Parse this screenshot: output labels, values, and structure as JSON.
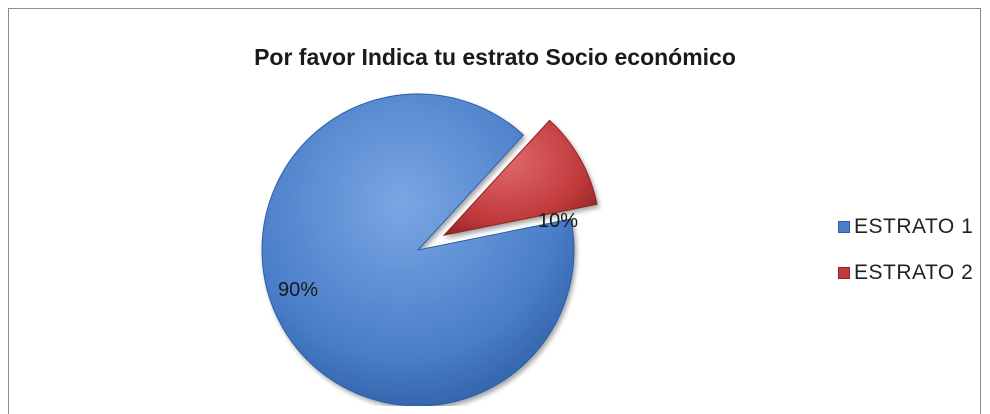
{
  "chart_data": {
    "type": "pie",
    "title": "Por favor Indica tu estrato Socio económico",
    "categories": [
      "ESTRATO 1",
      "ESTRATO 2"
    ],
    "values": [
      90,
      10
    ],
    "data_labels": [
      "90%",
      "10%"
    ],
    "colors": [
      "#4a7ec9",
      "#c0393b"
    ],
    "exploded": [
      false,
      true
    ],
    "legend": "right"
  }
}
